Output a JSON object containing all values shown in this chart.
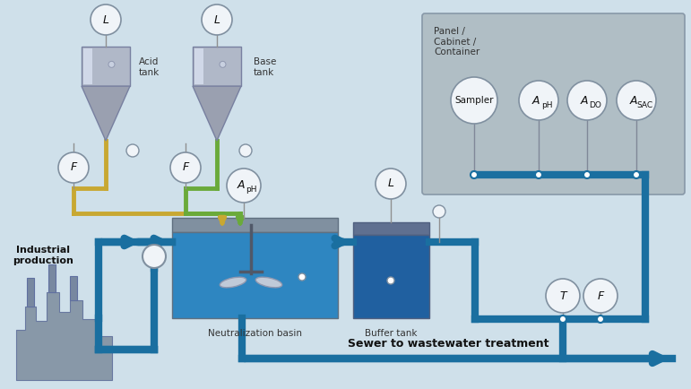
{
  "bg_color": "#cfe0ea",
  "panel_color": "#b0bec5",
  "tank_fill": "#2e86c1",
  "buffer_fill": "#2874a6",
  "pipe_blue": "#1a6fa0",
  "pipe_yellow": "#c8a832",
  "pipe_green": "#6aaa3a",
  "instrument_circle_color": "#f0f4f8",
  "instrument_border": "#8090a0",
  "text_dark": "#1a1a1a",
  "text_medium": "#444444",
  "title_text": "Sewer to wastewater treatment",
  "labels": {
    "acid_tank": "Acid\ntank",
    "base_tank": "Base\ntank",
    "panel": "Panel /\nCabinet /\nContainer",
    "neutralization": "Neutralization basin",
    "buffer": "Buffer tank",
    "industrial": "Industrial\nproduction"
  },
  "fig_w": 7.71,
  "fig_h": 4.34,
  "dpi": 100
}
